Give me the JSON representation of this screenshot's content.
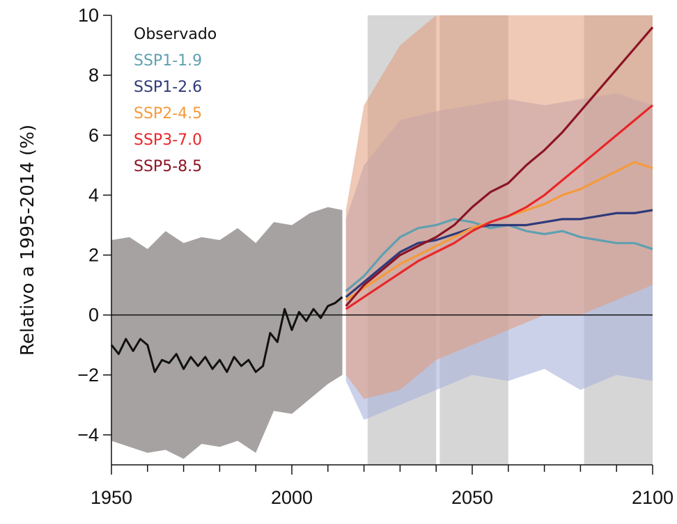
{
  "chart_data": {
    "type": "line",
    "ylabel": "Relativo a 1995-2014 (%)",
    "xlabel": "",
    "xlim": [
      1950,
      2100
    ],
    "ylim": [
      -5,
      10
    ],
    "xticks": [
      "1950",
      "2000",
      "2050",
      "2100"
    ],
    "yticks": [
      "10",
      "8",
      "6",
      "4",
      "2",
      "0",
      "−2",
      "−4"
    ],
    "zero_line": 0,
    "shaded_periods": [
      [
        2021,
        2040
      ],
      [
        2041,
        2060
      ],
      [
        2081,
        2100
      ]
    ],
    "legend_placement": "top-left",
    "legend": [
      "Observado",
      "SSP1-1.9",
      "SSP1-2.6",
      "SSP2-4.5",
      "SSP3-7.0",
      "SSP5-8.5"
    ],
    "colors": {
      "Observado": "#111111",
      "SSP1-1.9": "#5fa0b0",
      "SSP1-2.6": "#2f3a7a",
      "SSP2-4.5": "#f59a3b",
      "SSP3-7.0": "#e8262a",
      "SSP5-8.5": "#8b1423",
      "historical_band": "#a6a2a2",
      "ssp1_band": "#aab3dc",
      "ssp5_band": "#e29a7a",
      "period_shade": "#d6d6d6"
    },
    "historical_band": {
      "x": [
        1950,
        1955,
        1960,
        1965,
        1970,
        1975,
        1980,
        1985,
        1990,
        1995,
        2000,
        2005,
        2010,
        2014
      ],
      "upper": [
        2.5,
        2.6,
        2.2,
        2.8,
        2.4,
        2.6,
        2.5,
        2.9,
        2.4,
        3.1,
        3.0,
        3.4,
        3.6,
        3.5
      ],
      "lower": [
        -4.2,
        -4.4,
        -4.6,
        -4.5,
        -4.8,
        -4.3,
        -4.4,
        -4.2,
        -4.6,
        -3.2,
        -3.3,
        -2.8,
        -2.3,
        -2.0
      ]
    },
    "ssp1_band": {
      "x": [
        2015,
        2020,
        2030,
        2040,
        2050,
        2060,
        2070,
        2080,
        2090,
        2100
      ],
      "upper": [
        3.2,
        5.0,
        6.5,
        6.8,
        7.0,
        7.2,
        7.0,
        7.2,
        7.4,
        7.0
      ],
      "lower": [
        -2.2,
        -3.5,
        -3.0,
        -2.5,
        -2.0,
        -2.2,
        -1.8,
        -2.5,
        -2.0,
        -2.2
      ]
    },
    "ssp5_band": {
      "x": [
        2015,
        2020,
        2030,
        2040,
        2050,
        2060,
        2070,
        2080,
        2090,
        2100
      ],
      "upper": [
        3.5,
        7.0,
        9.0,
        10.0,
        10.0,
        10.0,
        10.0,
        10.0,
        10.0,
        10.0
      ],
      "lower": [
        -2.0,
        -2.8,
        -2.5,
        -1.5,
        -1.0,
        -0.5,
        0.0,
        0.0,
        0.5,
        1.0
      ]
    },
    "series": [
      {
        "name": "Observado",
        "x": [
          1950,
          1952,
          1954,
          1956,
          1958,
          1960,
          1962,
          1964,
          1966,
          1968,
          1970,
          1972,
          1974,
          1976,
          1978,
          1980,
          1982,
          1984,
          1986,
          1988,
          1990,
          1992,
          1994,
          1996,
          1998,
          2000,
          2002,
          2004,
          2006,
          2008,
          2010,
          2012,
          2014
        ],
        "y": [
          -1.0,
          -1.3,
          -0.8,
          -1.2,
          -0.8,
          -1.0,
          -1.9,
          -1.5,
          -1.6,
          -1.3,
          -1.8,
          -1.4,
          -1.7,
          -1.4,
          -1.8,
          -1.5,
          -1.9,
          -1.4,
          -1.7,
          -1.5,
          -1.9,
          -1.7,
          -0.6,
          -0.9,
          0.2,
          -0.5,
          0.1,
          -0.2,
          0.2,
          -0.1,
          0.3,
          0.4,
          0.6
        ]
      },
      {
        "name": "SSP1-1.9",
        "x": [
          2015,
          2020,
          2025,
          2030,
          2035,
          2040,
          2045,
          2050,
          2055,
          2060,
          2065,
          2070,
          2075,
          2080,
          2085,
          2090,
          2095,
          2100
        ],
        "y": [
          0.8,
          1.3,
          2.0,
          2.6,
          2.9,
          3.0,
          3.2,
          3.1,
          2.9,
          3.0,
          2.8,
          2.7,
          2.8,
          2.6,
          2.5,
          2.4,
          2.4,
          2.2
        ]
      },
      {
        "name": "SSP1-2.6",
        "x": [
          2015,
          2020,
          2025,
          2030,
          2035,
          2040,
          2045,
          2050,
          2055,
          2060,
          2065,
          2070,
          2075,
          2080,
          2085,
          2090,
          2095,
          2100
        ],
        "y": [
          0.6,
          1.1,
          1.6,
          2.1,
          2.4,
          2.5,
          2.7,
          2.9,
          3.0,
          3.0,
          3.0,
          3.1,
          3.2,
          3.2,
          3.3,
          3.4,
          3.4,
          3.5
        ]
      },
      {
        "name": "SSP2-4.5",
        "x": [
          2015,
          2020,
          2025,
          2030,
          2035,
          2040,
          2045,
          2050,
          2055,
          2060,
          2065,
          2070,
          2075,
          2080,
          2085,
          2090,
          2095,
          2100
        ],
        "y": [
          0.5,
          0.9,
          1.3,
          1.7,
          2.0,
          2.3,
          2.6,
          2.9,
          3.1,
          3.3,
          3.5,
          3.7,
          4.0,
          4.2,
          4.5,
          4.8,
          5.1,
          4.9
        ]
      },
      {
        "name": "SSP3-7.0",
        "x": [
          2015,
          2020,
          2025,
          2030,
          2035,
          2040,
          2045,
          2050,
          2055,
          2060,
          2065,
          2070,
          2075,
          2080,
          2085,
          2090,
          2095,
          2100
        ],
        "y": [
          0.2,
          0.6,
          1.0,
          1.4,
          1.8,
          2.1,
          2.4,
          2.8,
          3.1,
          3.3,
          3.6,
          4.0,
          4.5,
          5.0,
          5.5,
          6.0,
          6.5,
          7.0
        ]
      },
      {
        "name": "SSP5-8.5",
        "x": [
          2015,
          2020,
          2025,
          2030,
          2035,
          2040,
          2045,
          2050,
          2055,
          2060,
          2065,
          2070,
          2075,
          2080,
          2085,
          2090,
          2095,
          2100
        ],
        "y": [
          0.3,
          1.0,
          1.5,
          2.0,
          2.3,
          2.6,
          3.0,
          3.6,
          4.1,
          4.4,
          5.0,
          5.5,
          6.1,
          6.8,
          7.5,
          8.2,
          8.9,
          9.6
        ]
      }
    ]
  }
}
